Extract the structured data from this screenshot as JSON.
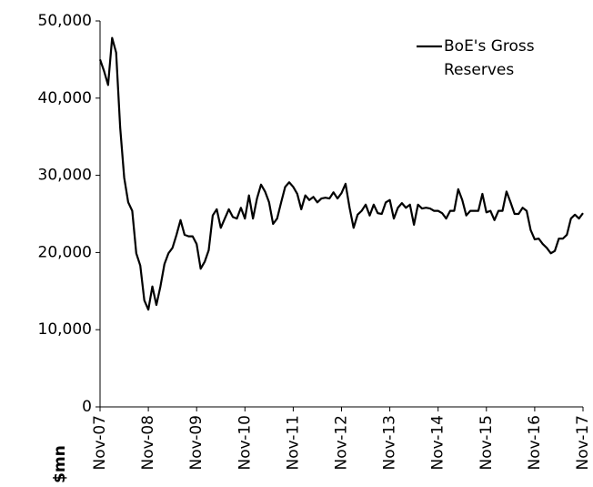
{
  "chart_data": {
    "type": "line",
    "y_label": "$mn",
    "categories": [
      "Nov-07",
      null,
      null,
      null,
      null,
      null,
      null,
      null,
      null,
      null,
      null,
      null,
      "Nov-08",
      null,
      null,
      null,
      null,
      null,
      null,
      null,
      null,
      null,
      null,
      null,
      "Nov-09",
      null,
      null,
      null,
      null,
      null,
      null,
      null,
      null,
      null,
      null,
      null,
      "Nov-10",
      null,
      null,
      null,
      null,
      null,
      null,
      null,
      null,
      null,
      null,
      null,
      "Nov-11",
      null,
      null,
      null,
      null,
      null,
      null,
      null,
      null,
      null,
      null,
      null,
      "Nov-12",
      null,
      null,
      null,
      null,
      null,
      null,
      null,
      null,
      null,
      null,
      null,
      "Nov-13",
      null,
      null,
      null,
      null,
      null,
      null,
      null,
      null,
      null,
      null,
      null,
      "Nov-14",
      null,
      null,
      null,
      null,
      null,
      null,
      null,
      null,
      null,
      null,
      null,
      "Nov-15",
      null,
      null,
      null,
      null,
      null,
      null,
      null,
      null,
      null,
      null,
      null,
      "Nov-16",
      null,
      null,
      null,
      null,
      null,
      null,
      null,
      null,
      null,
      null,
      null,
      "Nov-17"
    ],
    "series": [
      {
        "name": "BoE's Gross Reserves",
        "color": "#000000",
        "values": [
          45000,
          43500,
          41700,
          47800,
          45900,
          36200,
          29700,
          26500,
          25400,
          19900,
          18300,
          13800,
          12600,
          15600,
          13200,
          15600,
          18500,
          19900,
          20600,
          22300,
          24200,
          22300,
          22100,
          22100,
          21100,
          17900,
          18800,
          20300,
          24800,
          25600,
          23200,
          24400,
          25600,
          24600,
          24400,
          25800,
          24400,
          27400,
          24400,
          27000,
          28800,
          27900,
          26500,
          23700,
          24400,
          26500,
          28500,
          29100,
          28500,
          27600,
          25600,
          27400,
          26800,
          27200,
          26500,
          27000,
          27100,
          27000,
          27800,
          27000,
          27700,
          28900,
          25800,
          23200,
          24900,
          25400,
          26200,
          24800,
          26200,
          25100,
          25000,
          26500,
          26800,
          24400,
          25800,
          26400,
          25800,
          26200,
          23600,
          26200,
          25700,
          25800,
          25700,
          25400,
          25400,
          25100,
          24400,
          25400,
          25400,
          28200,
          26800,
          24800,
          25400,
          25400,
          25400,
          27600,
          25200,
          25400,
          24200,
          25400,
          25400,
          27900,
          26500,
          25000,
          25000,
          25800,
          25400,
          22900,
          21700,
          21800,
          21100,
          20600,
          19900,
          20200,
          21800,
          21800,
          22300,
          24400,
          24900,
          24400,
          25100
        ]
      }
    ],
    "ylim": [
      0,
      50000
    ],
    "yticks": [
      0,
      {
        "value": 10000,
        "label": "10,000"
      },
      {
        "value": 20000,
        "label": "20,000"
      },
      {
        "value": 30000,
        "label": "30,000"
      },
      {
        "value": 40000,
        "label": "40,000"
      },
      {
        "value": 50000,
        "label": "50,000"
      }
    ],
    "grid": false,
    "legend": "top-right"
  }
}
